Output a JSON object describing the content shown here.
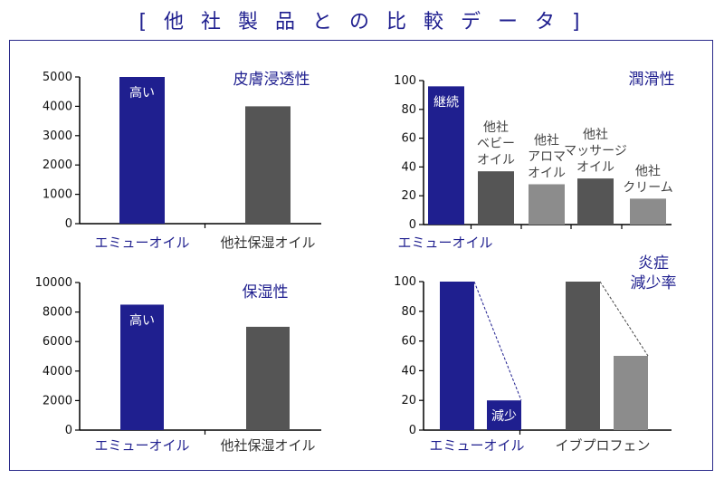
{
  "page": {
    "title": "[ 他 社 製 品 と の 比 較 デ ー タ ]"
  },
  "colors": {
    "emu": "#1f1f8f",
    "dark": "#555555",
    "light": "#8c8c8c",
    "title": "#1f1f8f"
  },
  "chart_data": [
    {
      "type": "bar",
      "title": "皮膚浸透性",
      "categories": [
        "エミューオイル",
        "他社保湿オイル"
      ],
      "values": [
        5000,
        4000
      ],
      "ylim": [
        0,
        5000
      ],
      "yticks": [
        0,
        1000,
        2000,
        3000,
        4000,
        5000
      ],
      "bar_labels": [
        "高い",
        ""
      ],
      "grid": false
    },
    {
      "type": "bar",
      "title": "潤滑性",
      "categories": [
        "エミューオイル",
        "他社 ベビー オイル",
        "他社 アロマ オイル",
        "他社 マッサージ オイル",
        "他社 クリーム"
      ],
      "values": [
        96,
        37,
        28,
        32,
        18
      ],
      "ylim": [
        0,
        100
      ],
      "yticks": [
        0,
        20,
        40,
        60,
        80,
        100
      ],
      "bar_labels": [
        "継続",
        "",
        "",
        "",
        ""
      ],
      "grid": false
    },
    {
      "type": "bar",
      "title": "保湿性",
      "categories": [
        "エミューオイル",
        "他社保湿オイル"
      ],
      "values": [
        8500,
        7000
      ],
      "ylim": [
        0,
        10000
      ],
      "yticks": [
        0,
        2000,
        4000,
        6000,
        8000,
        10000
      ],
      "bar_labels": [
        "高い",
        ""
      ],
      "grid": false
    },
    {
      "type": "bar",
      "title": "炎症 減少率",
      "categories": [
        "エミューオイル",
        "イブプロフェン"
      ],
      "series": [
        {
          "values": [
            100,
            100
          ]
        },
        {
          "values": [
            20,
            50
          ]
        }
      ],
      "ylim": [
        0,
        100
      ],
      "yticks": [
        0,
        20,
        40,
        60,
        80,
        100
      ],
      "bar_labels": [
        "減少"
      ],
      "grid": false
    }
  ]
}
